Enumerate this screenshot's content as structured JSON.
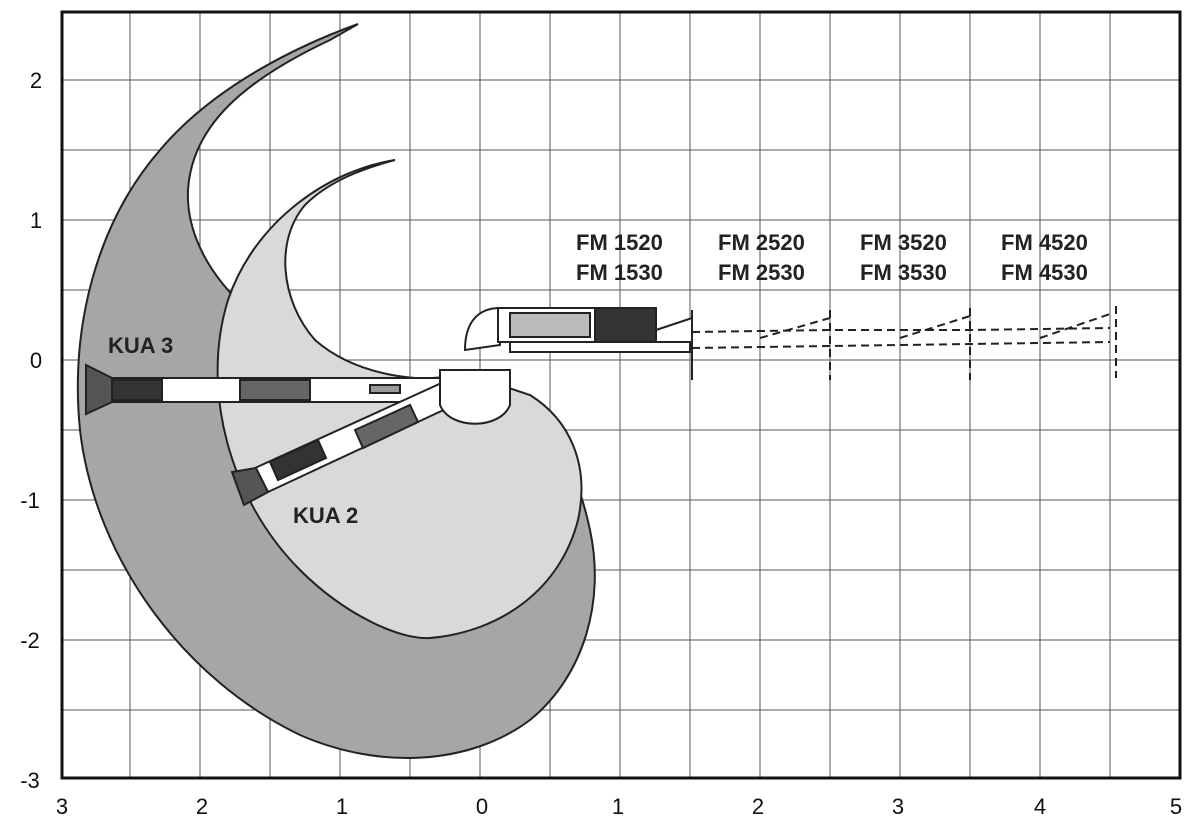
{
  "axes": {
    "x_ticks": [
      "3",
      "2",
      "1",
      "0",
      "1",
      "2",
      "3",
      "4",
      "5"
    ],
    "y_ticks": [
      "2",
      "1",
      "0",
      "-1",
      "-2",
      "-3"
    ]
  },
  "labels": {
    "kua3": "KUA 3",
    "kua2": "KUA 2",
    "fm_1": [
      "FM 1520",
      "FM 1530"
    ],
    "fm_2": [
      "FM 2520",
      "FM 2530"
    ],
    "fm_3": [
      "FM 3520",
      "FM 3530"
    ],
    "fm_4": [
      "FM 4520",
      "FM 4530"
    ]
  },
  "colors": {
    "dark_zone": "#a6a6a6",
    "light_zone": "#d9d9d9",
    "grid": "#555555",
    "arm": "#ffffff",
    "ink": "#222222"
  }
}
